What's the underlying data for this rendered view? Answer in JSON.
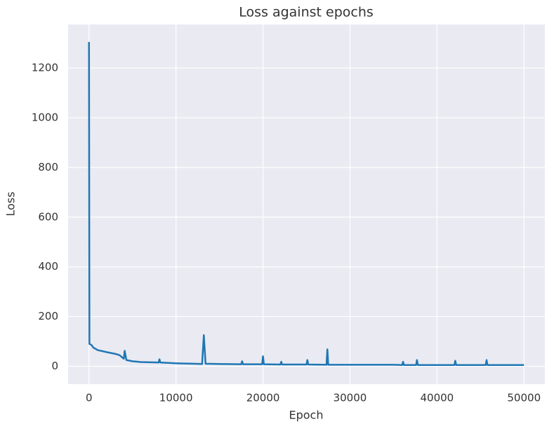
{
  "chart_data": {
    "type": "line",
    "title": "Loss against epochs",
    "x_label": "Epoch",
    "y_label": "Loss",
    "x": [
      0,
      50,
      300,
      500,
      1000,
      2000,
      3000,
      3500,
      4000,
      4100,
      4300,
      5000,
      6000,
      8000,
      8100,
      8200,
      10000,
      12000,
      13000,
      13200,
      13400,
      15000,
      17500,
      17600,
      17700,
      19900,
      20000,
      20100,
      22000,
      22100,
      22200,
      25000,
      25100,
      25200,
      27300,
      27400,
      27500,
      30000,
      35000,
      36000,
      36100,
      36200,
      37600,
      37700,
      37800,
      42000,
      42100,
      42200,
      45600,
      45700,
      45800,
      50000
    ],
    "series": [
      {
        "name": "Loss",
        "color": "#1f77b4",
        "values": [
          1305,
          90,
          85,
          75,
          65,
          57,
          50,
          45,
          30,
          62,
          25,
          20,
          17,
          15,
          28,
          15,
          12,
          10,
          9,
          125,
          10,
          9,
          8,
          20,
          8,
          8,
          40,
          8,
          7,
          18,
          7,
          7,
          25,
          7,
          6,
          68,
          6,
          6,
          6,
          5,
          18,
          5,
          5,
          25,
          5,
          5,
          22,
          5,
          5,
          25,
          5,
          5
        ]
      }
    ],
    "xlim": [
      -2400,
      52400
    ],
    "ylim": [
      -72,
      1375
    ],
    "xticks": [
      0,
      10000,
      20000,
      30000,
      40000,
      50000
    ],
    "yticks": [
      0,
      200,
      400,
      600,
      800,
      1000,
      1200
    ],
    "grid": true
  }
}
